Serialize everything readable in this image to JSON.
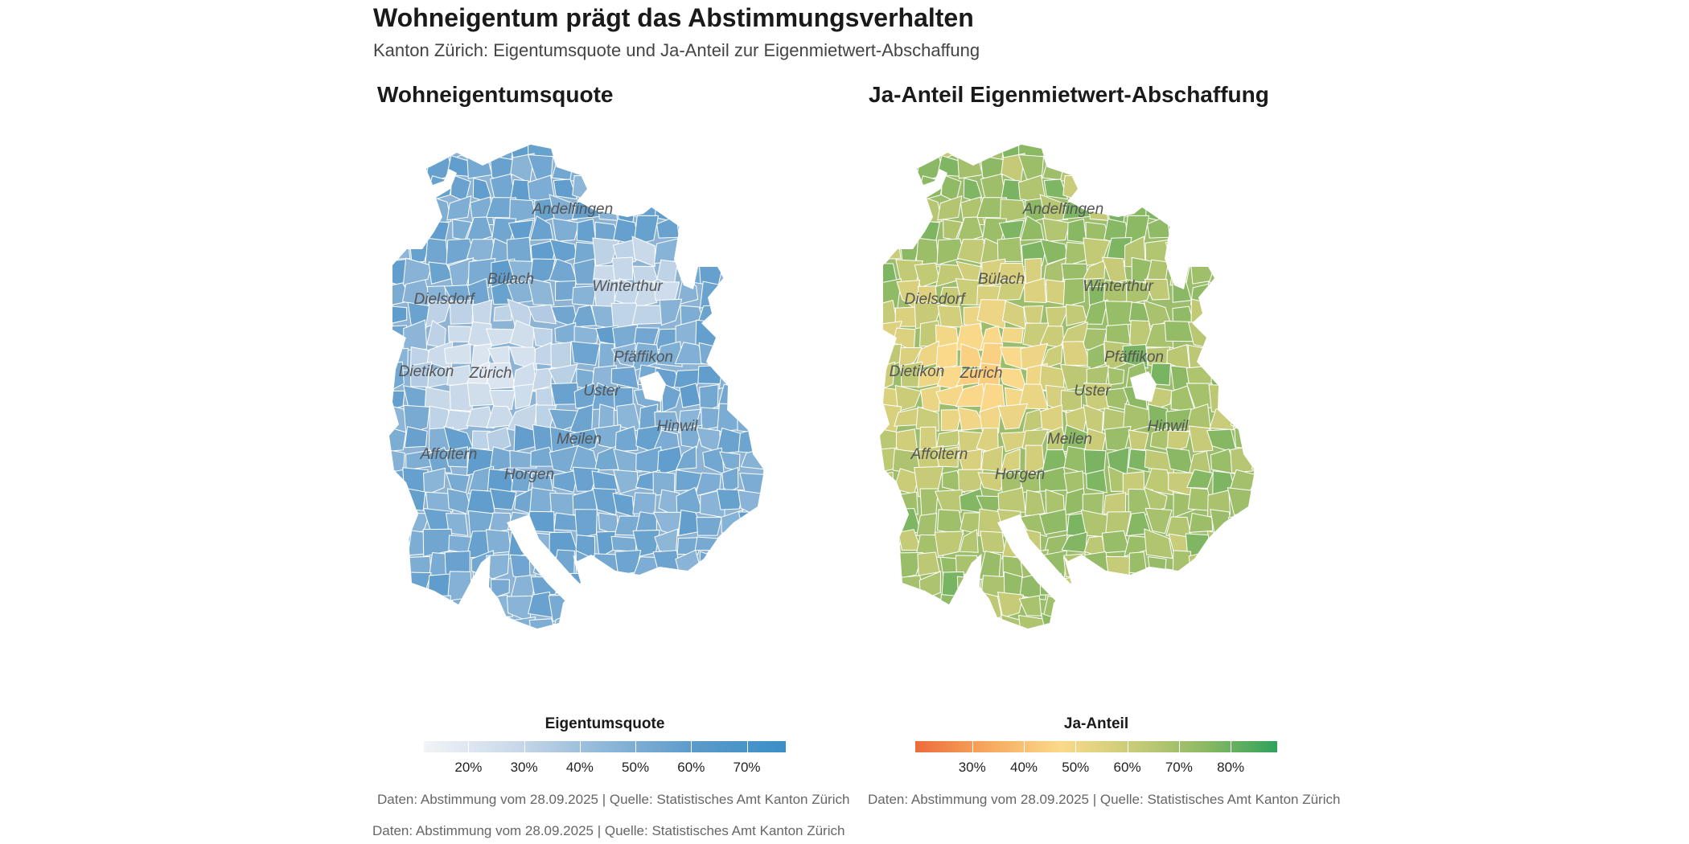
{
  "title": "Wohneigentum prägt das Abstimmungsverhalten",
  "subtitle": "Kanton Zürich: Eigentumsquote und Ja-Anteil zur Eigenmietwert-Abschaffung",
  "left_panel": {
    "title": "Wohneigentumsquote",
    "legend": {
      "title": "Eigentumsquote",
      "ticks": [
        "20%",
        "30%",
        "40%",
        "50%",
        "60%",
        "70%"
      ],
      "range": [
        12,
        77
      ],
      "tick_values": [
        20,
        30,
        40,
        50,
        60,
        70
      ],
      "colors": [
        "#f2f4f7",
        "#c9d9ea",
        "#8fb7d8",
        "#5b9acb",
        "#3a8fc6"
      ]
    }
  },
  "right_panel": {
    "title": "Ja-Anteil Eigenmietwert-Abschaffung",
    "legend": {
      "title": "Ja-Anteil",
      "ticks": [
        "30%",
        "40%",
        "50%",
        "60%",
        "70%",
        "80%"
      ],
      "range": [
        19,
        89
      ],
      "tick_values": [
        30,
        40,
        50,
        60,
        70,
        80
      ],
      "colors": [
        "#ec6c3a",
        "#f7a85e",
        "#fbd98a",
        "#c9cc78",
        "#8db964",
        "#2ea25b"
      ]
    }
  },
  "district_labels": [
    "Andelfingen",
    "Bülach",
    "Winterthur",
    "Dielsdorf",
    "Dietikon",
    "Zürich",
    "Pfäffikon",
    "Uster",
    "Hinwil",
    "Meilen",
    "Affoltern",
    "Horgen"
  ],
  "captions": {
    "left": "Daten: Abstimmung vom 28.09.2025 | Quelle: Statistisches Amt Kanton Zürich",
    "right": "Daten: Abstimmung vom 28.09.2025 | Quelle: Statistisches Amt Kanton Zürich",
    "bottom": "Daten: Abstimmung vom 28.09.2025 | Quelle: Statistisches Amt Kanton Zürich"
  }
}
